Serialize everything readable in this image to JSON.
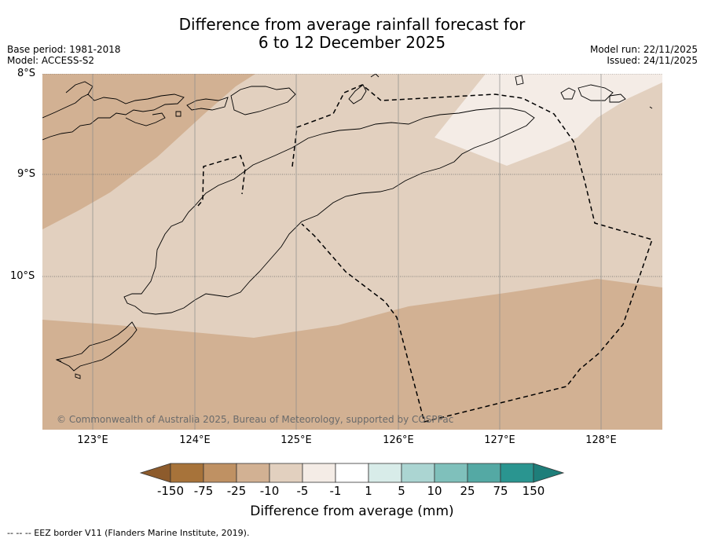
{
  "title": {
    "line1": "Difference from average rainfall forecast for",
    "line2": "6 to 12 December 2025"
  },
  "meta": {
    "base_period": "Base period: 1981-2018",
    "model": "Model: ACCESS-S2",
    "model_run": "Model run: 22/11/2025",
    "issued": "Issued: 24/11/2025"
  },
  "map": {
    "latitude_labels": [
      "8°S",
      "9°S",
      "10°S"
    ],
    "longitude_labels": [
      "123°E",
      "124°E",
      "125°E",
      "126°E",
      "127°E",
      "128°E"
    ],
    "copyright": "© Commonwealth of Australia 2025, Bureau of Meteorology, supported by COSPPac"
  },
  "colorbar": {
    "ticks": [
      "-150",
      "-75",
      "-25",
      "-10",
      "-5",
      "-1",
      "1",
      "5",
      "10",
      "25",
      "75",
      "150"
    ],
    "colors": [
      "#a7733a",
      "#bf9163",
      "#d2b193",
      "#e2d0bf",
      "#f4ece6",
      "#ffffff",
      "#d8ece9",
      "#abd5d2",
      "#7fc0bb",
      "#54a9a4",
      "#2a9590"
    ],
    "label": "Difference from average (mm)"
  },
  "footer": {
    "text": "--  --  -- EEZ border V11 (Flanders Marine Institute, 2019)."
  }
}
